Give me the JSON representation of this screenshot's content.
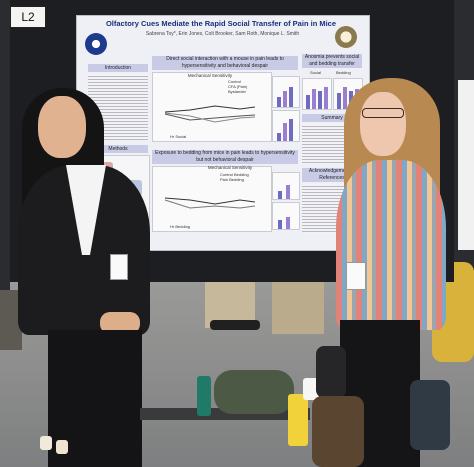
{
  "booth_sign": "L2",
  "poster": {
    "title": "Olfactory Cues Mediate the Rapid Social Transfer of Pain in Mice",
    "authors": "Sabrena Toy*, Erin Jones, Colt Brooker, Sam Roth, Monique L. Smith",
    "sections": {
      "introduction": "Introduction",
      "methods": "Methods",
      "direct_interaction": "Direct social interaction with a mouse in pain leads to hypersensitivity and behavioral despair",
      "exposure": "Exposure to bedding from mice in pain leads to hypersensitivity but not behavioral despair",
      "anosmia": "Anosmia prevents social and bedding transfer",
      "summary": "Summary",
      "acknowledgements": "Acknowledgements / References"
    },
    "chart_top": {
      "title": "Mechanical Sensitivity",
      "legend": [
        "Control",
        "CFA (Pain)",
        "Bystander"
      ],
      "x_label": "Hr Social"
    },
    "chart_bottom": {
      "title": "Mechanical Sensitivity",
      "legend": [
        "Control Bedding",
        "Pain Bedding"
      ],
      "x_label": "Hr Bedding"
    },
    "side_labels": [
      "Social",
      "Bedding"
    ]
  },
  "colors": {
    "poster_header": "#c9cbe6",
    "poster_title": "#1a2f7a",
    "bar_purple": "#6e6bc1",
    "bar_violet": "#9a7fd0"
  }
}
